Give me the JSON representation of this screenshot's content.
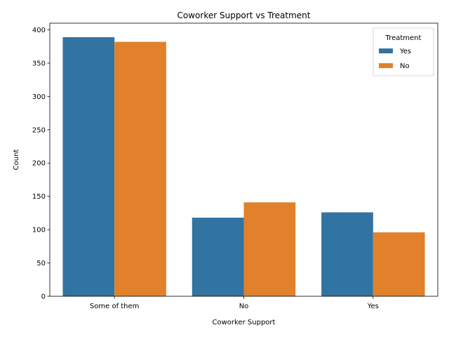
{
  "chart_data": {
    "type": "bar",
    "title": "Coworker Support vs Treatment",
    "xlabel": "Coworker Support",
    "ylabel": "Count",
    "categories": [
      "Some of them",
      "No",
      "Yes"
    ],
    "series": [
      {
        "name": "Yes",
        "color": "#3274a1",
        "values": [
          389,
          118,
          126
        ]
      },
      {
        "name": "No",
        "color": "#e1812c",
        "values": [
          382,
          141,
          96
        ]
      }
    ],
    "ylim": [
      0,
      410
    ],
    "yticks": [
      0,
      50,
      100,
      150,
      200,
      250,
      300,
      350,
      400
    ],
    "grid": false,
    "legend": {
      "title": "Treatment",
      "placement": "top-right"
    }
  }
}
